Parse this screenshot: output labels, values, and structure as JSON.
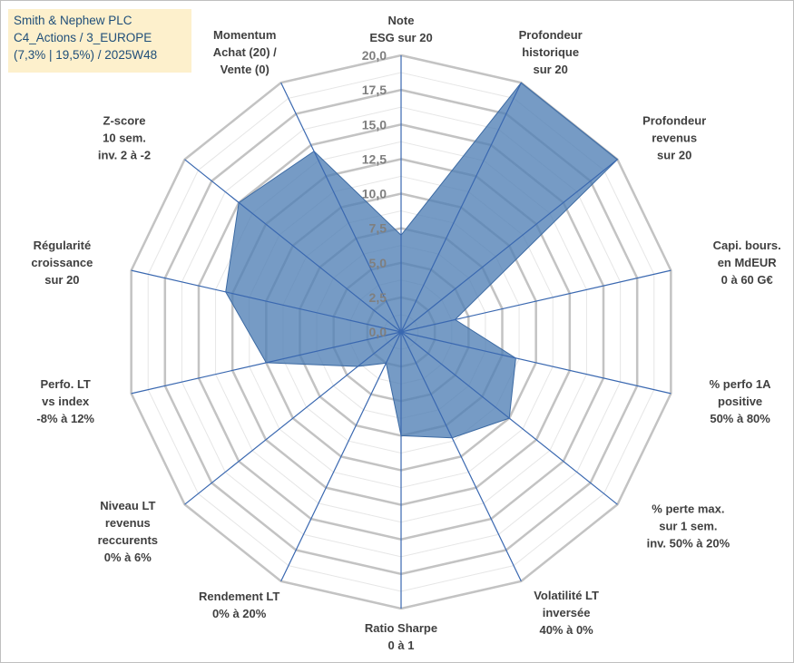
{
  "title_box": {
    "line1": "Smith & Nephew PLC",
    "line2": "C4_Actions / 3_EUROPE",
    "line3": "(7,3% | 19,5%) / 2025W48"
  },
  "colors": {
    "fill": "#4f7fb5",
    "stroke": "#3c6aa3",
    "spoke": "#3a68b0",
    "major_grid": "#c3c3c3",
    "minor_grid": "#e6e6e6",
    "title_bg": "#fdf0cc",
    "title_text": "#1f4e79"
  },
  "chart_data": {
    "type": "radar",
    "title": "Smith & Nephew PLC",
    "r_range": [
      0,
      20
    ],
    "ticks": [
      "0,0",
      "2,5",
      "5,0",
      "7,5",
      "10,0",
      "12,5",
      "15,0",
      "17,5",
      "20,0"
    ],
    "tick_values": [
      0,
      2.5,
      5,
      7.5,
      10,
      12.5,
      15,
      17.5,
      20
    ],
    "minor_step": 1.25,
    "categories": [
      [
        "Note",
        "ESG sur 20"
      ],
      [
        "Profondeur",
        "historique",
        "sur 20"
      ],
      [
        "Profondeur",
        "revenus",
        "sur 20"
      ],
      [
        "Capi. bours.",
        "en MdEUR",
        "0 à 60 G€"
      ],
      [
        "% perfo 1A",
        "positive",
        "50% à 80%"
      ],
      [
        "% perte max.",
        "sur 1 sem.",
        "inv. 50% à 20%"
      ],
      [
        "Volatilité LT",
        "inversée",
        "40% à 0%"
      ],
      [
        "Ratio Sharpe",
        "0 à 1"
      ],
      [
        "Rendement LT",
        "0% à 20%"
      ],
      [
        "Niveau LT",
        "revenus",
        "reccurents",
        "0% à 6%"
      ],
      [
        "Perfo. LT",
        "vs index",
        "-8% à 12%"
      ],
      [
        "Régularité",
        "croissance",
        "sur 20"
      ],
      [
        "Z-score",
        "10 sem.",
        "inv. 2 à -2"
      ],
      [
        "Momentum",
        "Achat (20) /",
        "Vente (0)"
      ]
    ],
    "series": [
      {
        "name": "Smith & Nephew PLC",
        "values": [
          7.0,
          20.0,
          20.0,
          4.0,
          8.5,
          10.0,
          8.5,
          7.5,
          2.5,
          4.0,
          10.0,
          13.0,
          15.0,
          14.5
        ]
      }
    ],
    "grid": true,
    "legend": "none"
  }
}
